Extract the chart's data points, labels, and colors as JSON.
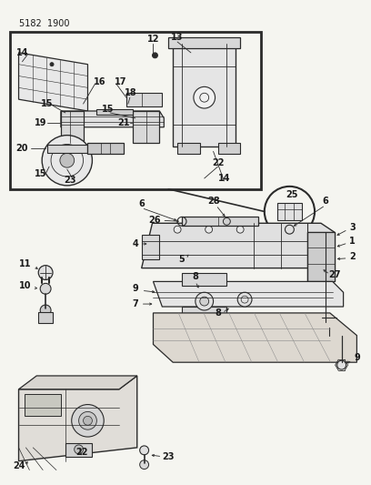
{
  "title": "5182  1900",
  "bg_color": "#f5f5f0",
  "line_color": "#2a2a2a",
  "text_color": "#1a1a1a",
  "fig_width": 4.08,
  "fig_height": 5.33,
  "dpi": 100
}
